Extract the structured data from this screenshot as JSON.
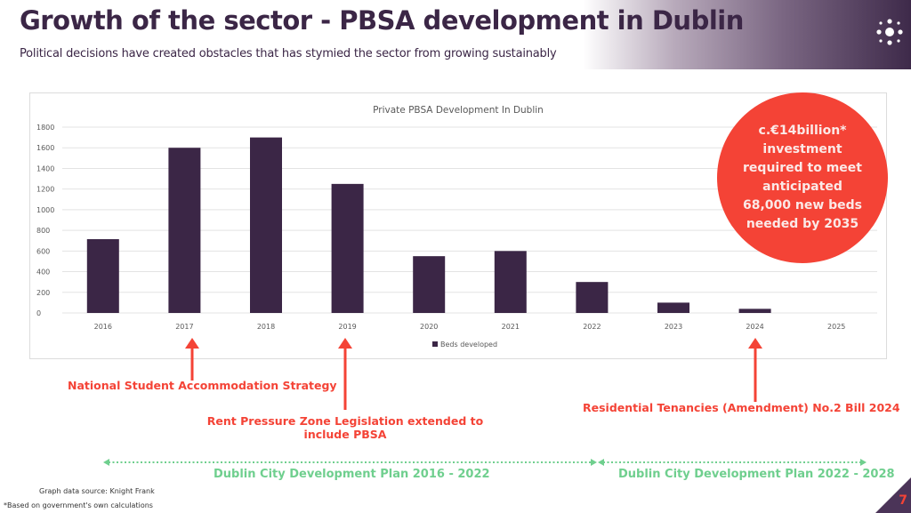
{
  "header": {
    "title": "Growth of the sector - PBSA development in Dublin",
    "subtitle": "Political decisions have created obstacles that has stymied the sector from growing sustainably",
    "logo_icon": "dot-cluster-icon"
  },
  "chart_data": {
    "type": "bar",
    "title": "Private PBSA Development In Dublin",
    "categories": [
      "2016",
      "2017",
      "2018",
      "2019",
      "2020",
      "2021",
      "2022",
      "2023",
      "2024",
      "2025"
    ],
    "series": [
      {
        "name": "Beds developed",
        "values": [
          715,
          1600,
          1700,
          1250,
          550,
          600,
          300,
          100,
          40,
          0
        ]
      }
    ],
    "yticks": [
      "0",
      "200",
      "400",
      "600",
      "800",
      "1000",
      "1200",
      "1400",
      "1600",
      "1800"
    ],
    "ylim": [
      0,
      1800
    ],
    "xlabel": "",
    "ylabel": "",
    "grid": true,
    "legend": "bottom",
    "bar_color": "#3b2646"
  },
  "callout": {
    "text": "c.€14billion*\ninvestment\nrequired to meet\nanticipated\n68,000 new beds\nneeded by 2035",
    "color": "#f44336"
  },
  "annotations": [
    {
      "label": "National Student Accommodation Strategy",
      "year": "2017"
    },
    {
      "label": "Rent Pressure Zone Legislation extended to include PBSA",
      "year": "2019"
    },
    {
      "label": "Residential Tenancies (Amendment) No.2 Bill 2024",
      "year": "2024"
    }
  ],
  "plans": [
    {
      "label": "Dublin City Development Plan 2016 - 2022"
    },
    {
      "label": "Dublin City Development Plan 2022 - 2028"
    }
  ],
  "footnotes": {
    "source": "Graph data source: Knight Frank",
    "note": "*Based on government's own calculations"
  },
  "page_number": "7",
  "colors": {
    "accent": "#f44336",
    "brand": "#3b2646",
    "plan": "#6fcf8e"
  }
}
